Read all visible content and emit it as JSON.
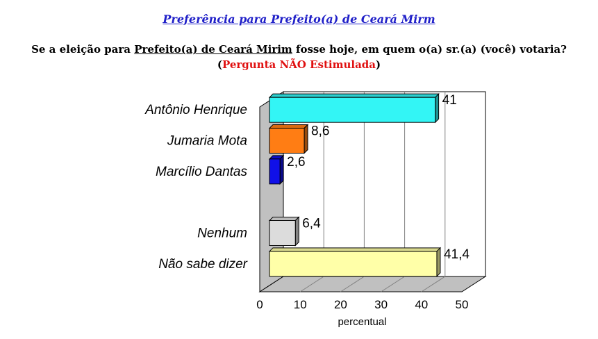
{
  "header": {
    "title": "Preferência para Prefeito(a) de Ceará Mirm",
    "question_part1": "Se a eleição para ",
    "question_underlined": "Prefeito(a) de Ceará Mirim",
    "question_part2": " fosse hoje, em quem o(a) sr.(a) (você) votaria?",
    "note_open": "(",
    "note_text": "Pergunta NÃO Estimulada",
    "note_close": ")"
  },
  "chart_data": {
    "type": "bar",
    "orientation": "horizontal",
    "style": "3d",
    "xlabel": "percentual",
    "xlim": [
      0,
      50
    ],
    "xticks": [
      "0",
      "10",
      "20",
      "30",
      "40",
      "50"
    ],
    "grid": true,
    "categories": [
      "Antônio Henrique",
      "Jumaria Mota",
      "Marcílio Dantas",
      "",
      "Nenhum",
      "Não sabe dizer"
    ],
    "values": [
      41,
      8.6,
      2.6,
      null,
      6.4,
      41.4
    ],
    "value_labels": [
      "41",
      "8,6",
      "2,6",
      "",
      "6,4",
      "41,4"
    ],
    "colors": [
      "#33f5f5",
      "#ff7d14",
      "#1010e8",
      "",
      "#dcdcdc",
      "#ffffa8"
    ]
  }
}
